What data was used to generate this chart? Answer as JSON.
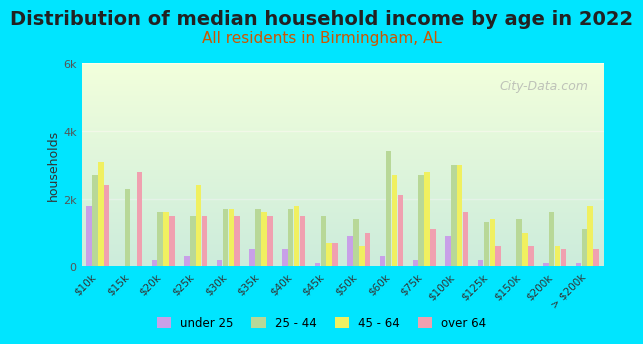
{
  "title": "Distribution of median household income by age in 2022",
  "subtitle": "All residents in Birmingham, AL",
  "xlabel": "",
  "ylabel": "households",
  "categories": [
    "$10k",
    "$15k",
    "$20k",
    "$25k",
    "$30k",
    "$35k",
    "$40k",
    "$45k",
    "$50k",
    "$60k",
    "$75k",
    "$100k",
    "$125k",
    "$150k",
    "$200k",
    "> $200k"
  ],
  "age_groups": [
    "under 25",
    "25 - 44",
    "45 - 64",
    "over 64"
  ],
  "colors": [
    "#c8a0e8",
    "#b8d898",
    "#f0f060",
    "#f0a0b0"
  ],
  "data": {
    "under 25": [
      1800,
      0,
      200,
      300,
      200,
      500,
      500,
      100,
      900,
      300,
      200,
      900,
      200,
      0,
      100,
      100
    ],
    "25 - 44": [
      2700,
      2300,
      1600,
      1500,
      1700,
      1700,
      1700,
      1500,
      1400,
      3400,
      2700,
      3000,
      1300,
      1400,
      1600,
      1100
    ],
    "45 - 64": [
      3100,
      0,
      1600,
      2400,
      1700,
      1600,
      1800,
      700,
      600,
      2700,
      2800,
      3000,
      1400,
      1000,
      600,
      1800
    ],
    "over 64": [
      2400,
      2800,
      1500,
      1500,
      1500,
      1500,
      1500,
      700,
      1000,
      2100,
      1100,
      1600,
      600,
      600,
      500,
      500
    ]
  },
  "ylim": [
    0,
    6000
  ],
  "yticks": [
    0,
    2000,
    4000,
    6000
  ],
  "ytick_labels": [
    "0",
    "2k",
    "4k",
    "6k"
  ],
  "background_top": "#e8f5e8",
  "background_bottom": "#f0fff0",
  "outer_background": "#00e5ff",
  "title_fontsize": 14,
  "subtitle_fontsize": 11,
  "watermark": "City-Data.com"
}
